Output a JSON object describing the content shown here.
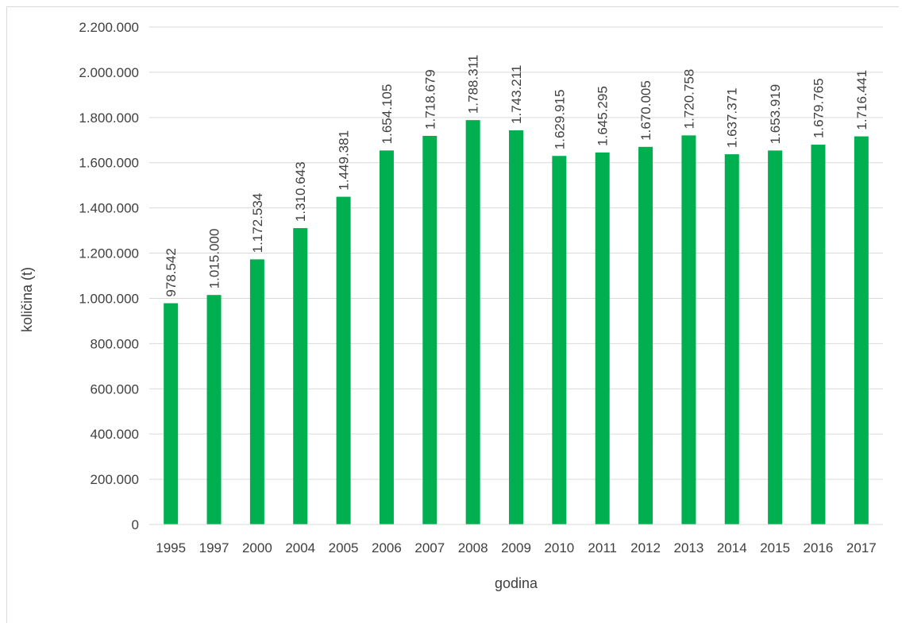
{
  "chart_data": {
    "type": "bar",
    "title": "",
    "xlabel": "godina",
    "ylabel": "količina (t)",
    "ylim": [
      0,
      2200000
    ],
    "yticks": [
      0,
      200000,
      400000,
      600000,
      800000,
      1000000,
      1200000,
      1400000,
      1600000,
      1800000,
      2000000,
      2200000
    ],
    "ytick_labels": [
      "0",
      "200.000",
      "400.000",
      "600.000",
      "800.000",
      "1.000.000",
      "1.200.000",
      "1.400.000",
      "1.600.000",
      "1.800.000",
      "2.000.000",
      "2.200.000"
    ],
    "grid": true,
    "legend": "none",
    "bar_color": "#00b050",
    "grid_color": "#d9d9d9",
    "categories": [
      "1995",
      "1997",
      "2000",
      "2004",
      "2005",
      "2006",
      "2007",
      "2008",
      "2009",
      "2010",
      "2011",
      "2012",
      "2013",
      "2014",
      "2015",
      "2016",
      "2017"
    ],
    "values": [
      978542,
      1015000,
      1172534,
      1310643,
      1449381,
      1654105,
      1718679,
      1788311,
      1743211,
      1629915,
      1645295,
      1670005,
      1720758,
      1637371,
      1653919,
      1679765,
      1716441
    ],
    "data_labels": [
      "978.542",
      "1.015.000",
      "1.172.534",
      "1.310.643",
      "1.449.381",
      "1.654.105",
      "1.718.679",
      "1.788.311",
      "1.743.211",
      "1.629.915",
      "1.645.295",
      "1.670.005",
      "1.720.758",
      "1.637.371",
      "1.653.919",
      "1.679.765",
      "1.716.441"
    ]
  }
}
